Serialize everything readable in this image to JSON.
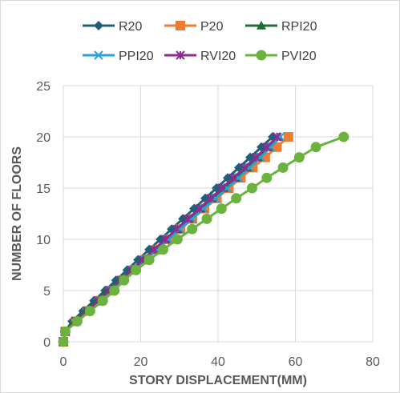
{
  "chart_data": {
    "type": "line",
    "xlabel": "STORY DISPLACEMENT(MM)",
    "ylabel": "NUMBER OF FLOORS",
    "xlim": [
      0,
      80
    ],
    "ylim": [
      0,
      25
    ],
    "xticks": [
      0,
      20,
      40,
      60,
      80
    ],
    "yticks": [
      0,
      5,
      10,
      15,
      20,
      25
    ],
    "grid": true,
    "legend_position": "top",
    "series": [
      {
        "name": "R20",
        "color": "#1f5f7a",
        "marker": "diamond",
        "x": [
          0,
          0.5,
          2.3,
          5.1,
          7.9,
          10.8,
          13.6,
          16.5,
          19.3,
          22.2,
          25.1,
          28,
          30.9,
          33.8,
          36.7,
          39.6,
          42.5,
          45.4,
          48.3,
          51.2,
          54.1
        ],
        "y": [
          0,
          1,
          2,
          3,
          4,
          5,
          6,
          7,
          8,
          9,
          10,
          11,
          12,
          13,
          14,
          15,
          16,
          17,
          18,
          19,
          20
        ]
      },
      {
        "name": "P20",
        "color": "#ed7d31",
        "marker": "square",
        "x": [
          0,
          0.5,
          3.2,
          6.2,
          9.2,
          12.2,
          15.2,
          18.2,
          21.3,
          24.3,
          27.3,
          30.3,
          33.4,
          36.5,
          39.7,
          42.8,
          45.9,
          49.0,
          52.2,
          55.2,
          58.2
        ],
        "y": [
          0,
          1,
          2,
          3,
          4,
          5,
          6,
          7,
          8,
          9,
          10,
          11,
          12,
          13,
          14,
          15,
          16,
          17,
          18,
          19,
          20
        ]
      },
      {
        "name": "RPI20",
        "color": "#1e6b33",
        "marker": "triangle",
        "x": [
          0,
          0.5,
          2.8,
          5.6,
          8.5,
          11.5,
          14.5,
          17.5,
          20.5,
          23.5,
          26.5,
          29.5,
          32.5,
          35.5,
          38.5,
          41.5,
          44.5,
          47.5,
          50.3,
          53.1,
          55.8
        ],
        "y": [
          0,
          1,
          2,
          3,
          4,
          5,
          6,
          7,
          8,
          9,
          10,
          11,
          12,
          13,
          14,
          15,
          16,
          17,
          18,
          19,
          20
        ]
      },
      {
        "name": "PPI20",
        "color": "#2aa1d6",
        "marker": "x",
        "x": [
          0,
          0.5,
          3.3,
          6.2,
          9.2,
          12.2,
          15.2,
          18.2,
          21.2,
          24.2,
          27.2,
          30.2,
          33.3,
          36.3,
          39.4,
          42.4,
          45.3,
          48.2,
          51.0,
          53.6,
          56.1
        ],
        "y": [
          0,
          1,
          2,
          3,
          4,
          5,
          6,
          7,
          8,
          9,
          10,
          11,
          12,
          13,
          14,
          15,
          16,
          17,
          18,
          19,
          20
        ]
      },
      {
        "name": "RVI20",
        "color": "#8e2c91",
        "marker": "star",
        "x": [
          0,
          0.5,
          3.2,
          6.1,
          9.0,
          11.9,
          14.8,
          17.7,
          20.6,
          23.5,
          26.4,
          29.3,
          32.2,
          35.2,
          38.1,
          41.0,
          44.0,
          46.9,
          49.8,
          52.6,
          55.3
        ],
        "y": [
          0,
          1,
          2,
          3,
          4,
          5,
          6,
          7,
          8,
          9,
          10,
          11,
          12,
          13,
          14,
          15,
          16,
          17,
          18,
          19,
          20
        ]
      },
      {
        "name": "PVI20",
        "color": "#6bb33f",
        "marker": "circle",
        "x": [
          0,
          0.5,
          3.6,
          6.9,
          10.2,
          13.2,
          15.7,
          18.8,
          22.2,
          25.8,
          29.5,
          33.3,
          37.1,
          40.9,
          44.7,
          48.8,
          52.6,
          56.8,
          61.0,
          65.3,
          72.5
        ],
        "y": [
          0,
          1,
          2,
          3,
          4,
          5,
          6,
          7,
          8,
          9,
          10,
          11,
          12,
          13,
          14,
          15,
          16,
          17,
          18,
          19,
          20
        ]
      }
    ]
  }
}
